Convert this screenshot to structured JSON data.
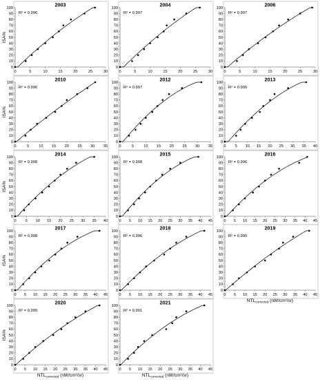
{
  "figure": {
    "ylabel": "ISA%",
    "xlabel_main": "NTL",
    "xlabel_sub": "corrected",
    "xlabel_unit": " (nW/cm²/sr)"
  },
  "chart_data": [
    {
      "type": "scatter",
      "title": "2003",
      "r2": "R² = 0.996",
      "xlim": [
        0,
        30
      ],
      "xticks": [
        0,
        5,
        10,
        15,
        20,
        25,
        30
      ],
      "ylim": [
        0,
        100
      ],
      "yticks": [
        0,
        10,
        20,
        30,
        40,
        50,
        60,
        70,
        80,
        90,
        100
      ],
      "points": [
        [
          0,
          0
        ],
        [
          3.5,
          10
        ],
        [
          5.5,
          20
        ],
        [
          7.5,
          30
        ],
        [
          10,
          40
        ],
        [
          12.5,
          50
        ],
        [
          14.5,
          60
        ],
        [
          16,
          70
        ],
        [
          18.5,
          80
        ],
        [
          23,
          90
        ],
        [
          26.5,
          100
        ]
      ]
    },
    {
      "type": "scatter",
      "title": "2004",
      "r2": "R² = 0.997",
      "xlim": [
        0,
        30
      ],
      "xticks": [
        0,
        5,
        10,
        15,
        20,
        25,
        30
      ],
      "ylim": [
        0,
        100
      ],
      "yticks": [
        0,
        10,
        20,
        30,
        40,
        50,
        60,
        70,
        80,
        90,
        100
      ],
      "points": [
        [
          0,
          0
        ],
        [
          4,
          10
        ],
        [
          6,
          20
        ],
        [
          8,
          30
        ],
        [
          10,
          40
        ],
        [
          12.5,
          50
        ],
        [
          14.5,
          60
        ],
        [
          15.5,
          70
        ],
        [
          18,
          80
        ],
        [
          22,
          90
        ],
        [
          26.5,
          100
        ]
      ]
    },
    {
      "type": "scatter",
      "title": "2006",
      "r2": "R² = 0.997",
      "xlim": [
        0,
        30
      ],
      "xticks": [
        0,
        5,
        10,
        15,
        20,
        25,
        30
      ],
      "ylim": [
        0,
        100
      ],
      "yticks": [
        0,
        10,
        20,
        30,
        40,
        50,
        60,
        70,
        80,
        90,
        100
      ],
      "points": [
        [
          0,
          0
        ],
        [
          4,
          10
        ],
        [
          6,
          20
        ],
        [
          8,
          30
        ],
        [
          11,
          40
        ],
        [
          13.5,
          50
        ],
        [
          16,
          60
        ],
        [
          18,
          70
        ],
        [
          21,
          80
        ],
        [
          25,
          90
        ],
        [
          29,
          100
        ]
      ]
    },
    {
      "type": "scatter",
      "title": "2010",
      "r2": "R² = 0.996",
      "xlim": [
        0,
        35
      ],
      "xticks": [
        0,
        5,
        10,
        15,
        20,
        25,
        30,
        35
      ],
      "ylim": [
        0,
        100
      ],
      "yticks": [
        0,
        10,
        20,
        30,
        40,
        50,
        60,
        70,
        80,
        90,
        100
      ],
      "points": [
        [
          0,
          0
        ],
        [
          4,
          10
        ],
        [
          6,
          20
        ],
        [
          8.5,
          30
        ],
        [
          12,
          40
        ],
        [
          15.5,
          50
        ],
        [
          18,
          60
        ],
        [
          20,
          70
        ],
        [
          24,
          80
        ],
        [
          28,
          90
        ],
        [
          31,
          100
        ]
      ]
    },
    {
      "type": "scatter",
      "title": "2012",
      "r2": "R² = 0.997",
      "xlim": [
        0,
        35
      ],
      "xticks": [
        0,
        5,
        10,
        15,
        20,
        25,
        30,
        35
      ],
      "ylim": [
        0,
        100
      ],
      "yticks": [
        0,
        10,
        20,
        30,
        40,
        50,
        60,
        70,
        80,
        90,
        100
      ],
      "points": [
        [
          0,
          0
        ],
        [
          3.5,
          10
        ],
        [
          6,
          20
        ],
        [
          8,
          30
        ],
        [
          10,
          40
        ],
        [
          12.5,
          50
        ],
        [
          14.5,
          60
        ],
        [
          16.5,
          70
        ],
        [
          19,
          80
        ],
        [
          24,
          90
        ],
        [
          31.5,
          100
        ]
      ]
    },
    {
      "type": "scatter",
      "title": "2013",
      "r2": "R² = 0.995",
      "xlim": [
        0,
        40
      ],
      "xticks": [
        0,
        5,
        10,
        15,
        20,
        25,
        30,
        35,
        40
      ],
      "ylim": [
        0,
        100
      ],
      "yticks": [
        0,
        10,
        20,
        30,
        40,
        50,
        60,
        70,
        80,
        90,
        100
      ],
      "points": [
        [
          0,
          0
        ],
        [
          5,
          10
        ],
        [
          7,
          20
        ],
        [
          9,
          30
        ],
        [
          12,
          40
        ],
        [
          15.5,
          50
        ],
        [
          17,
          60
        ],
        [
          20,
          70
        ],
        [
          22,
          80
        ],
        [
          28,
          90
        ],
        [
          36,
          100
        ]
      ]
    },
    {
      "type": "scatter",
      "title": "2014",
      "r2": "R² = 0.998",
      "xlim": [
        0,
        40
      ],
      "xticks": [
        0,
        5,
        10,
        15,
        20,
        25,
        30,
        35,
        40
      ],
      "ylim": [
        0,
        100
      ],
      "yticks": [
        0,
        10,
        20,
        30,
        40,
        50,
        60,
        70,
        80,
        90,
        100
      ],
      "points": [
        [
          0,
          0
        ],
        [
          4,
          10
        ],
        [
          6,
          20
        ],
        [
          9,
          30
        ],
        [
          12,
          40
        ],
        [
          15,
          50
        ],
        [
          17.5,
          60
        ],
        [
          20,
          70
        ],
        [
          23,
          80
        ],
        [
          27,
          90
        ],
        [
          35,
          100
        ]
      ]
    },
    {
      "type": "scatter",
      "title": "2015",
      "r2": "R² = 0.998",
      "xlim": [
        0,
        45
      ],
      "xticks": [
        0,
        5,
        10,
        15,
        20,
        25,
        30,
        35,
        40,
        45
      ],
      "ylim": [
        0,
        100
      ],
      "yticks": [
        0,
        10,
        20,
        30,
        40,
        50,
        60,
        70,
        80,
        90,
        100
      ],
      "points": [
        [
          0,
          0
        ],
        [
          4,
          10
        ],
        [
          7,
          20
        ],
        [
          9.5,
          30
        ],
        [
          12.5,
          40
        ],
        [
          15,
          50
        ],
        [
          18,
          60
        ],
        [
          21,
          70
        ],
        [
          25,
          80
        ],
        [
          30,
          90
        ],
        [
          39,
          100
        ]
      ]
    },
    {
      "type": "scatter",
      "title": "2016",
      "r2": "R² = 0.996",
      "xlim": [
        0,
        45
      ],
      "xticks": [
        0,
        5,
        10,
        15,
        20,
        25,
        30,
        35,
        40,
        45
      ],
      "ylim": [
        0,
        100
      ],
      "yticks": [
        0,
        10,
        20,
        30,
        40,
        50,
        60,
        70,
        80,
        90,
        100
      ],
      "points": [
        [
          0,
          0
        ],
        [
          4,
          10
        ],
        [
          7,
          20
        ],
        [
          10,
          30
        ],
        [
          14,
          40
        ],
        [
          17,
          50
        ],
        [
          20,
          60
        ],
        [
          23,
          70
        ],
        [
          27,
          80
        ],
        [
          37,
          90
        ],
        [
          41,
          100
        ]
      ]
    },
    {
      "type": "scatter",
      "title": "2017",
      "r2": "R² = 0.998",
      "xlim": [
        0,
        45
      ],
      "xticks": [
        0,
        5,
        10,
        15,
        20,
        25,
        30,
        35,
        40,
        45
      ],
      "ylim": [
        0,
        100
      ],
      "yticks": [
        0,
        10,
        20,
        30,
        40,
        50,
        60,
        70,
        80,
        90,
        100
      ],
      "points": [
        [
          0,
          0
        ],
        [
          4,
          10
        ],
        [
          7,
          20
        ],
        [
          10,
          30
        ],
        [
          13,
          40
        ],
        [
          17,
          50
        ],
        [
          20,
          60
        ],
        [
          23,
          70
        ],
        [
          26,
          80
        ],
        [
          31,
          90
        ],
        [
          42,
          100
        ]
      ]
    },
    {
      "type": "scatter",
      "title": "2018",
      "r2": "R² = 0.996",
      "xlim": [
        0,
        45
      ],
      "xticks": [
        0,
        5,
        10,
        15,
        20,
        25,
        30,
        35,
        40,
        45
      ],
      "ylim": [
        0,
        100
      ],
      "yticks": [
        0,
        10,
        20,
        30,
        40,
        50,
        60,
        70,
        80,
        90,
        100
      ],
      "points": [
        [
          0,
          0
        ],
        [
          4,
          10
        ],
        [
          7,
          20
        ],
        [
          10,
          30
        ],
        [
          13,
          40
        ],
        [
          17,
          50
        ],
        [
          22,
          60
        ],
        [
          25,
          70
        ],
        [
          28,
          80
        ],
        [
          33,
          90
        ],
        [
          42,
          100
        ]
      ]
    },
    {
      "type": "scatter",
      "title": "2019",
      "r2": "R² = 0.995",
      "xlim": [
        0,
        45
      ],
      "xticks": [
        0,
        5,
        10,
        15,
        20,
        25,
        30,
        35,
        40,
        45
      ],
      "ylim": [
        0,
        100
      ],
      "yticks": [
        0,
        10,
        20,
        30,
        40,
        50,
        60,
        70,
        80,
        90,
        100
      ],
      "points": [
        [
          0,
          0
        ],
        [
          4,
          10
        ],
        [
          7,
          20
        ],
        [
          11,
          30
        ],
        [
          15,
          40
        ],
        [
          20,
          50
        ],
        [
          23,
          60
        ],
        [
          27,
          70
        ],
        [
          29,
          80
        ],
        [
          34,
          90
        ],
        [
          42,
          100
        ]
      ]
    },
    {
      "type": "scatter",
      "title": "2020",
      "r2": "R² = 0.995",
      "xlim": [
        0,
        45
      ],
      "xticks": [
        0,
        5,
        10,
        15,
        20,
        25,
        30,
        35,
        40,
        45
      ],
      "ylim": [
        0,
        100
      ],
      "yticks": [
        0,
        10,
        20,
        30,
        40,
        50,
        60,
        70,
        80,
        90,
        100
      ],
      "points": [
        [
          0,
          0
        ],
        [
          4,
          10
        ],
        [
          7,
          20
        ],
        [
          10,
          30
        ],
        [
          14,
          40
        ],
        [
          19,
          50
        ],
        [
          23,
          60
        ],
        [
          26,
          70
        ],
        [
          30,
          80
        ],
        [
          35,
          90
        ],
        [
          42,
          100
        ]
      ]
    },
    {
      "type": "scatter",
      "title": "2021",
      "r2": "R² = 0.991",
      "xlim": [
        0,
        45
      ],
      "xticks": [
        0,
        5,
        10,
        15,
        20,
        25,
        30,
        35,
        40,
        45
      ],
      "ylim": [
        0,
        100
      ],
      "yticks": [
        0,
        10,
        20,
        30,
        40,
        50,
        60,
        70,
        80,
        90,
        100
      ],
      "points": [
        [
          0,
          0
        ],
        [
          4,
          10
        ],
        [
          7,
          20
        ],
        [
          9,
          30
        ],
        [
          12,
          40
        ],
        [
          16,
          50
        ],
        [
          23,
          60
        ],
        [
          26,
          70
        ],
        [
          28,
          80
        ],
        [
          33,
          90
        ],
        [
          42,
          100
        ]
      ]
    }
  ]
}
